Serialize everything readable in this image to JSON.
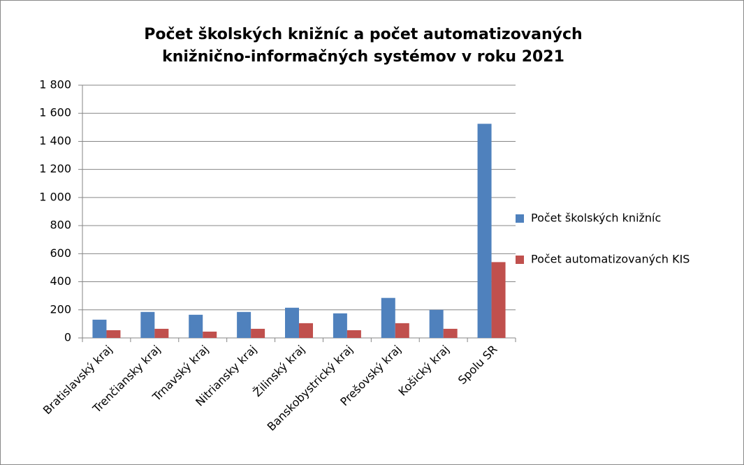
{
  "chart_data": {
    "type": "bar",
    "title": [
      "Počet školských knižníc a počet automatizovaných",
      "knižnično-informačných systémov v roku 2021"
    ],
    "categories": [
      "Bratislavský kraj",
      "Trenčiansky kraj",
      "Trnavský kraj",
      "Nitriansky kraj",
      "Žilinský kraj",
      "Banskobystrický kraj",
      "Prešovský kraj",
      "Košický kraj",
      "Spolu SR"
    ],
    "series": [
      {
        "name": "Počet školských knižníc",
        "color": "#4f81bd",
        "values": [
          130,
          185,
          165,
          185,
          215,
          175,
          285,
          200,
          1525
        ]
      },
      {
        "name": "Počet automatizovaných KIS",
        "color": "#c0504d",
        "values": [
          55,
          65,
          45,
          65,
          105,
          55,
          105,
          65,
          540
        ]
      }
    ],
    "ylim": [
      0,
      1800
    ],
    "yticks": [
      0,
      200,
      400,
      600,
      800,
      {
        "value": 1000,
        "label": "1 000"
      },
      {
        "value": 1200,
        "label": "1 200"
      },
      {
        "value": 1400,
        "label": "1 400"
      },
      {
        "value": 1600,
        "label": "1 600"
      },
      {
        "value": 1800,
        "label": "1 800"
      }
    ],
    "grid": true,
    "legend": "right"
  }
}
